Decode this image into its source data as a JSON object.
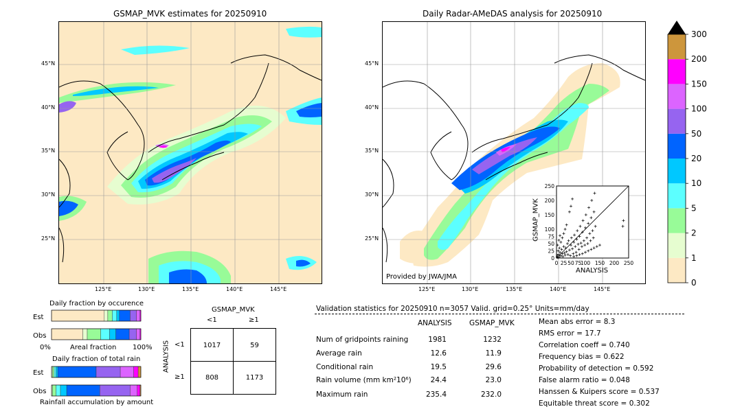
{
  "left_map": {
    "title": "GSMAP_MVK estimates for 20250910",
    "lat_ticks": [
      "45°N",
      "40°N",
      "35°N",
      "30°N",
      "25°N"
    ],
    "lon_ticks": [
      "125°E",
      "130°E",
      "135°E",
      "140°E",
      "145°E"
    ]
  },
  "right_map": {
    "title": "Daily Radar-AMeDAS analysis for 20250910",
    "lat_ticks": [
      "45°N",
      "40°N",
      "35°N",
      "30°N",
      "25°N"
    ],
    "lon_ticks": [
      "125°E",
      "130°E",
      "135°E",
      "140°E",
      "145°E"
    ],
    "credit": "Provided by JWA/JMA"
  },
  "colorbar": {
    "levels": [
      "0",
      "1",
      "2",
      "5",
      "10",
      "20",
      "50",
      "100",
      "150",
      "200",
      "300"
    ],
    "colors": [
      "#fde9c4",
      "#e6fdd0",
      "#98fb98",
      "#5cffff",
      "#00c8ff",
      "#0064ff",
      "#9664f0",
      "#dc64ff",
      "#ff00ff",
      "#cd963c"
    ],
    "extend_color": "#000000"
  },
  "chart_data": [
    {
      "type": "scatter",
      "xlabel": "ANALYSIS",
      "ylabel": "GSMAP_MVK",
      "xlim": [
        0,
        250
      ],
      "ylim": [
        0,
        250
      ],
      "xticks": [
        "0",
        "25",
        "50",
        "75",
        "100",
        "150",
        "200",
        "250"
      ],
      "yticks": [
        "0",
        "25",
        "50",
        "75",
        "100",
        "150",
        "200",
        "250"
      ],
      "points": [
        [
          2,
          3
        ],
        [
          5,
          1
        ],
        [
          8,
          12
        ],
        [
          10,
          4
        ],
        [
          12,
          20
        ],
        [
          15,
          8
        ],
        [
          18,
          30
        ],
        [
          20,
          15
        ],
        [
          22,
          5
        ],
        [
          25,
          40
        ],
        [
          28,
          18
        ],
        [
          30,
          10
        ],
        [
          32,
          35
        ],
        [
          35,
          22
        ],
        [
          38,
          50
        ],
        [
          40,
          12
        ],
        [
          42,
          60
        ],
        [
          45,
          28
        ],
        [
          48,
          8
        ],
        [
          50,
          45
        ],
        [
          52,
          70
        ],
        [
          55,
          32
        ],
        [
          58,
          15
        ],
        [
          60,
          55
        ],
        [
          62,
          80
        ],
        [
          65,
          40
        ],
        [
          68,
          20
        ],
        [
          70,
          65
        ],
        [
          72,
          95
        ],
        [
          75,
          48
        ],
        [
          78,
          30
        ],
        [
          80,
          75
        ],
        [
          82,
          110
        ],
        [
          85,
          52
        ],
        [
          88,
          40
        ],
        [
          90,
          90
        ],
        [
          92,
          130
        ],
        [
          95,
          60
        ],
        [
          98,
          45
        ],
        [
          100,
          105
        ],
        [
          102,
          150
        ],
        [
          105,
          70
        ],
        [
          108,
          50
        ],
        [
          110,
          120
        ],
        [
          112,
          175
        ],
        [
          115,
          85
        ],
        [
          118,
          60
        ],
        [
          120,
          140
        ],
        [
          122,
          200
        ],
        [
          125,
          95
        ],
        [
          128,
          70
        ],
        [
          130,
          160
        ],
        [
          132,
          225
        ],
        [
          135,
          110
        ],
        [
          15,
          55
        ],
        [
          20,
          70
        ],
        [
          25,
          85
        ],
        [
          30,
          100
        ],
        [
          35,
          115
        ],
        [
          10,
          35
        ],
        [
          6,
          25
        ],
        [
          3,
          10
        ],
        [
          4,
          45
        ],
        [
          8,
          62
        ],
        [
          12,
          78
        ],
        [
          60,
          5
        ],
        [
          70,
          8
        ],
        [
          80,
          12
        ],
        [
          90,
          15
        ],
        [
          100,
          20
        ],
        [
          110,
          25
        ],
        [
          120,
          30
        ],
        [
          130,
          35
        ],
        [
          140,
          40
        ],
        [
          150,
          45
        ],
        [
          230,
          110
        ],
        [
          232,
          130
        ],
        [
          50,
          180
        ],
        [
          55,
          205
        ],
        [
          45,
          160
        ]
      ]
    },
    {
      "type": "bar",
      "title": "Daily fraction by occurence",
      "xlabel": "Areal fraction",
      "xticks": [
        "0%",
        "100%"
      ],
      "categories": [
        "Est",
        "Obs"
      ],
      "segment_colors": [
        "#fde9c4",
        "#e6fdd0",
        "#98fb98",
        "#5cffff",
        "#00c8ff",
        "#0064ff",
        "#9664f0",
        "#dc64ff",
        "#ff00ff",
        "#cd963c"
      ],
      "values": [
        [
          0.59,
          0.04,
          0.05,
          0.05,
          0.03,
          0.12,
          0.07,
          0.04,
          0.01,
          0.0
        ],
        [
          0.35,
          0.05,
          0.15,
          0.1,
          0.07,
          0.15,
          0.08,
          0.04,
          0.01,
          0.0
        ]
      ]
    },
    {
      "type": "bar",
      "title": "Daily fraction of total rain",
      "xlabel": "Rainfall accumulation by amount",
      "categories": [
        "Est",
        "Obs"
      ],
      "segment_colors": [
        "#fde9c4",
        "#e6fdd0",
        "#98fb98",
        "#5cffff",
        "#00c8ff",
        "#0064ff",
        "#9664f0",
        "#dc64ff",
        "#ff00ff",
        "#cd963c"
      ],
      "values": [
        [
          0.0,
          0.01,
          0.02,
          0.02,
          0.02,
          0.43,
          0.27,
          0.15,
          0.05,
          0.03
        ],
        [
          0.0,
          0.01,
          0.04,
          0.05,
          0.07,
          0.37,
          0.34,
          0.08,
          0.03,
          0.01
        ]
      ]
    },
    {
      "type": "table",
      "title": "GSMAP_MVK",
      "col_labels": [
        "<1",
        "≥1"
      ],
      "row_title": "ANALYSIS",
      "row_labels": [
        "<1",
        "≥1"
      ],
      "cells": [
        [
          "1017",
          "59"
        ],
        [
          "808",
          "1173"
        ]
      ]
    }
  ],
  "validation": {
    "header": "Validation statistics for 20250910  n=3057 Valid. grid=0.25° Units=mm/day",
    "col_analysis": "ANALYSIS",
    "col_gsmap": "GSMAP_MVK",
    "rows": [
      {
        "label": "Num of gridpoints raining",
        "analysis": "1981",
        "gsmap": "1232"
      },
      {
        "label": "Average rain",
        "analysis": "12.6",
        "gsmap": "11.9"
      },
      {
        "label": "Conditional rain",
        "analysis": "19.5",
        "gsmap": "29.6"
      },
      {
        "label": "Rain volume (mm km²10⁶)",
        "analysis": "24.4",
        "gsmap": "23.0"
      },
      {
        "label": "Maximum rain",
        "analysis": "235.4",
        "gsmap": "232.0"
      }
    ],
    "scores": [
      "Mean abs error =    8.3",
      "RMS error =   17.7",
      "Correlation coeff =  0.740",
      "Frequency bias =  0.622",
      "Probability of detection =  0.592",
      "False alarm ratio =  0.048",
      "Hanssen & Kuipers score =  0.537",
      "Equitable threat score =  0.302"
    ]
  }
}
